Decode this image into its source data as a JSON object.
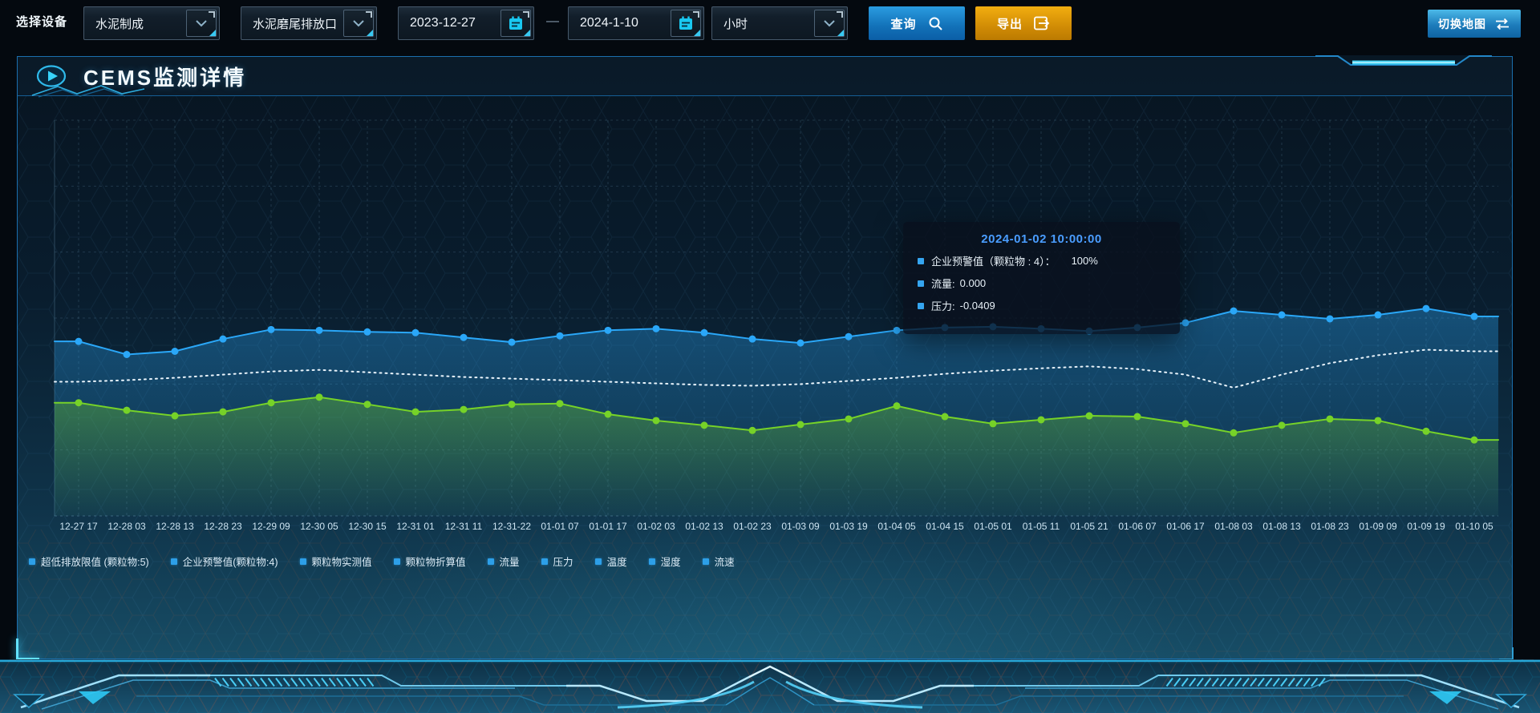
{
  "toolbar": {
    "device_label": "选择设备",
    "selects": [
      {
        "name": "device-type",
        "value": "水泥制成"
      },
      {
        "name": "outlet",
        "value": "水泥磨尾排放口"
      }
    ],
    "date_start": "2023-12-27",
    "date_separator": "—",
    "date_end": "2024-1-10",
    "interval": {
      "value": "小时"
    },
    "query_label": "查询",
    "export_label": "导出",
    "switch_map_label": "切换地图"
  },
  "panel": {
    "title": "CEMS监测详情"
  },
  "tooltip": {
    "title": "2024-01-02 10:00:00",
    "items": [
      {
        "label": "企业预警值（颗粒物 : 4）：",
        "value": "100%"
      },
      {
        "label": "流量:",
        "value": "0.000"
      },
      {
        "label": "压力:",
        "value": "-0.0409"
      }
    ]
  },
  "chart_data": {
    "type": "line",
    "title": "CEMS监测详情",
    "xlabel": "",
    "ylabel": "",
    "ylim": [
      0,
      100
    ],
    "y_axis_labels_visible": false,
    "grid": "dashed",
    "legend_position": "bottom",
    "legend": [
      "超低排放限值 (颗粒物:5)",
      "企业预警值(颗粒物:4)",
      "颗粒物实测值",
      "颗粒物折算值",
      "流量",
      "压力",
      "温度",
      "湿度",
      "流速"
    ],
    "categories": [
      "12-27 17",
      "12-28 03",
      "12-28 13",
      "12-28 23",
      "12-29 09",
      "12-30 05",
      "12-30 15",
      "12-31 01",
      "12-31 11",
      "12-31-22",
      "01-01 07",
      "01-01 17",
      "01-02 03",
      "01-02 13",
      "01-02 23",
      "01-03 09",
      "01-03 19",
      "01-04 05",
      "01-04 15",
      "01-05 01",
      "01-05 11",
      "01-05 21",
      "01-06 07",
      "01-06 17",
      "01-08 03",
      "01-08 13",
      "01-08 23",
      "01-09 09",
      "01-09 19",
      "01-10 05"
    ],
    "series": [
      {
        "name": "企业预警值(颗粒物:4)",
        "color": "#2aa7f8",
        "line_style": "solid",
        "has_markers": true,
        "has_area": true,
        "values": [
          44.1,
          40.8,
          41.6,
          44.7,
          47.1,
          46.9,
          46.5,
          46.3,
          45.1,
          43.9,
          45.5,
          46.9,
          47.3,
          46.3,
          44.7,
          43.7,
          45.3,
          46.9,
          47.6,
          47.8,
          47.3,
          46.7,
          47.6,
          48.8,
          51.8,
          50.8,
          49.8,
          50.8,
          52.4,
          50.4
        ]
      },
      {
        "name": "流量",
        "color": "#e9f4fc",
        "line_style": "dotted",
        "has_markers": false,
        "has_area": false,
        "values": [
          33.9,
          34.3,
          34.9,
          35.7,
          36.5,
          36.9,
          36.3,
          35.7,
          35.1,
          34.7,
          34.3,
          33.9,
          33.5,
          33.1,
          32.9,
          33.3,
          34.1,
          34.9,
          35.9,
          36.7,
          37.3,
          37.8,
          37.1,
          35.7,
          32.4,
          35.7,
          38.6,
          40.6,
          42.0,
          41.6
        ]
      },
      {
        "name": "压力",
        "color": "#76d228",
        "line_style": "solid",
        "has_markers": true,
        "has_area": true,
        "values": [
          28.6,
          26.7,
          25.3,
          26.3,
          28.6,
          30.0,
          28.2,
          26.3,
          26.9,
          28.2,
          28.4,
          25.7,
          24.1,
          22.9,
          21.6,
          23.1,
          24.5,
          27.8,
          25.1,
          23.3,
          24.3,
          25.3,
          25.1,
          23.3,
          21.0,
          22.9,
          24.5,
          24.1,
          21.4,
          19.2
        ]
      }
    ]
  },
  "colors": {
    "accent_cyan": "#2fc3f2",
    "button_blue": "#1271b8",
    "button_orange": "#d18c05",
    "panel_border": "#1b6fae",
    "tooltip_title": "#4a9dff",
    "series_blue": "#2aa7f8",
    "series_white": "#e9f4fc",
    "series_green": "#76d228",
    "legend_marker": "#2d9fe8"
  }
}
